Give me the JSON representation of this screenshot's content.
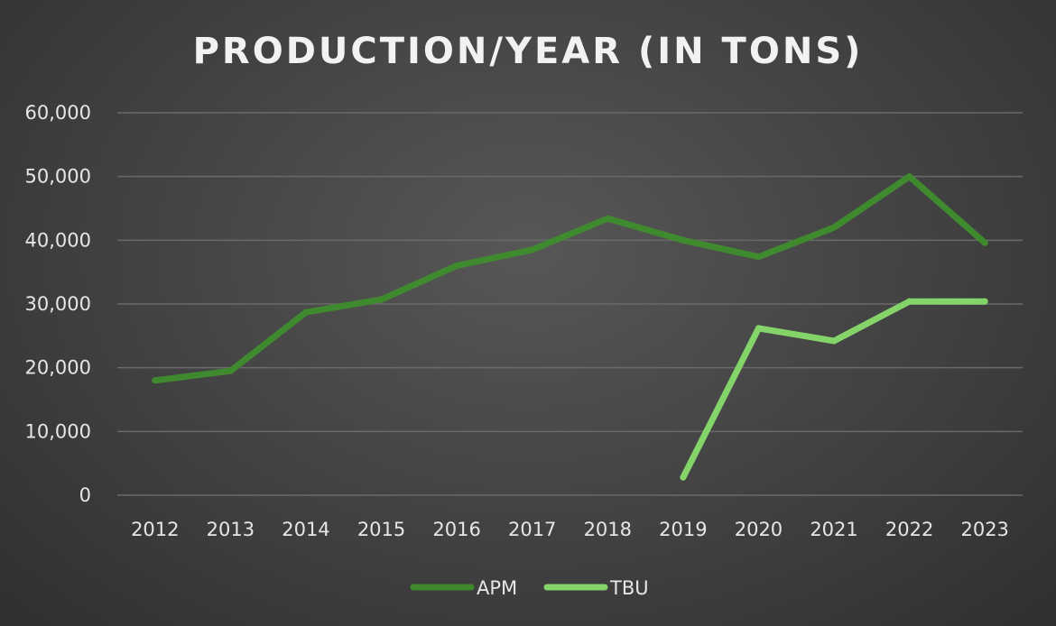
{
  "chart_data": {
    "type": "line",
    "title": "PRODUCTION/YEAR (IN TONS)",
    "xlabel": "",
    "ylabel": "",
    "categories": [
      "2012",
      "2013",
      "2014",
      "2015",
      "2016",
      "2017",
      "2018",
      "2019",
      "2020",
      "2021",
      "2022",
      "2023"
    ],
    "ylim": [
      0,
      60000
    ],
    "y_ticks": [
      0,
      10000,
      20000,
      30000,
      40000,
      50000,
      60000
    ],
    "y_tick_labels": [
      "0",
      "10,000",
      "20,000",
      "30,000",
      "40,000",
      "50,000",
      "60,000"
    ],
    "grid": true,
    "legend_position": "bottom-center",
    "series": [
      {
        "name": "APM",
        "color": "#3f8a2e",
        "values": [
          18000,
          19500,
          28700,
          30700,
          36000,
          38500,
          43400,
          40000,
          37400,
          42000,
          50000,
          39600
        ]
      },
      {
        "name": "TBU",
        "color": "#84d46a",
        "values": [
          null,
          null,
          null,
          null,
          null,
          null,
          null,
          2800,
          26200,
          24200,
          30400,
          30400
        ]
      }
    ]
  }
}
